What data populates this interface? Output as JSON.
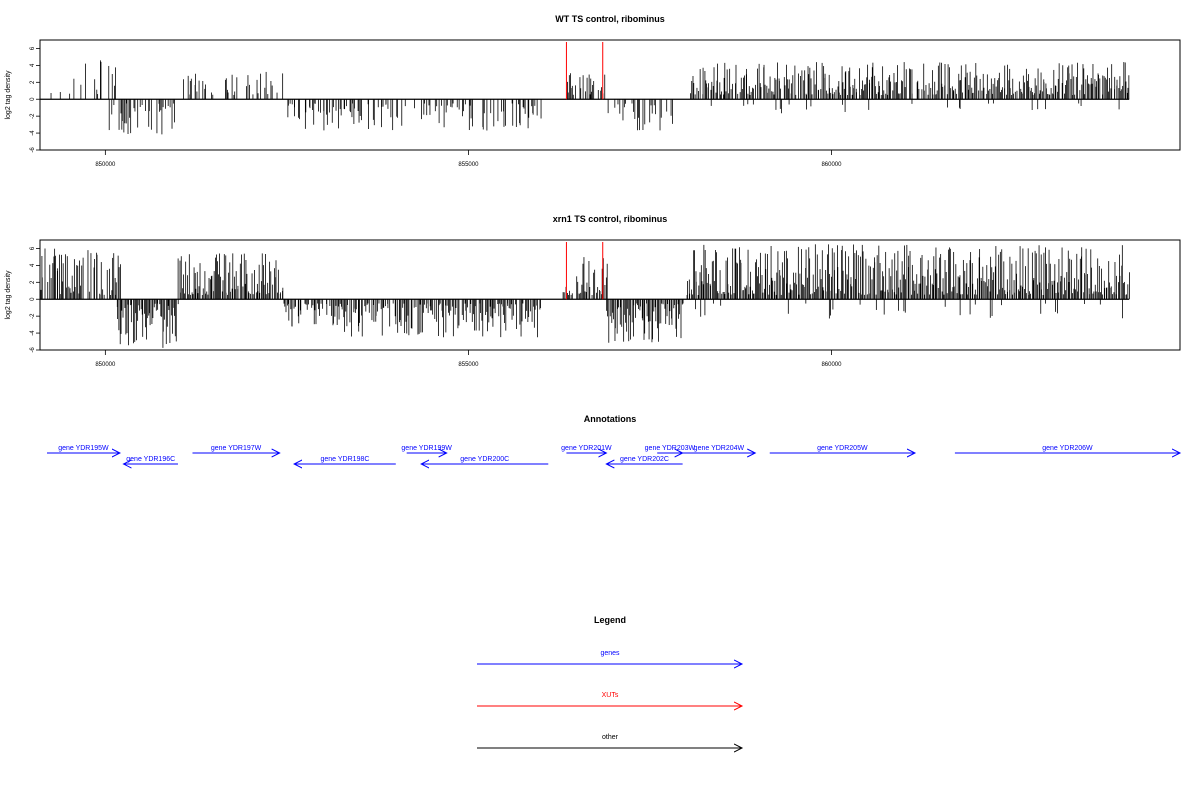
{
  "chart_data": [
    {
      "type": "bar",
      "title": "WT TS control, ribominus",
      "ylabel": "log2 tag density",
      "ylim": [
        -6,
        7
      ],
      "xlim": [
        849100,
        864800
      ],
      "yticks": [
        "6",
        "4",
        "2",
        "0",
        "-2",
        "-4",
        "-6"
      ],
      "yticks_values": [
        6,
        4,
        2,
        0,
        -2,
        -4,
        -6
      ],
      "xticks": [
        "850000",
        "855000",
        "860000"
      ],
      "xticks_values": [
        850000,
        855000,
        860000
      ],
      "data_range": [
        849100,
        864100
      ],
      "markers": [
        {
          "x": 856350,
          "color": "#ff0000"
        },
        {
          "x": 856850,
          "color": "#ff0000"
        }
      ],
      "series": [
        {
          "region": [
            849100,
            849500
          ],
          "sign": 1,
          "density": 0.15,
          "max": 1.3
        },
        {
          "region": [
            849500,
            850200
          ],
          "sign": 1,
          "density": 0.25,
          "max": 4.8
        },
        {
          "region": [
            850050,
            850950
          ],
          "sign": -1,
          "density": 0.6,
          "max": 4.3
        },
        {
          "region": [
            851000,
            852450
          ],
          "sign": 1,
          "density": 0.3,
          "max": 3.3
        },
        {
          "region": [
            852500,
            856000
          ],
          "sign": -1,
          "density": 0.45,
          "max": 3.7
        },
        {
          "region": [
            856350,
            856900
          ],
          "sign": 1,
          "density": 0.6,
          "max": 3.2
        },
        {
          "region": [
            856900,
            857800
          ],
          "sign": -1,
          "density": 0.5,
          "max": 3.7
        },
        {
          "region": [
            858050,
            864100
          ],
          "sign": 1,
          "density": 0.9,
          "max": 4.4
        },
        {
          "region": [
            858050,
            864100
          ],
          "sign": -1,
          "density": 0.05,
          "max": 1.8
        }
      ]
    },
    {
      "type": "bar",
      "title": "xrn1 TS control, ribominus",
      "ylabel": "log2 tag density",
      "ylim": [
        -6,
        7
      ],
      "xlim": [
        849100,
        864800
      ],
      "yticks": [
        "6",
        "4",
        "2",
        "0",
        "-2",
        "-4",
        "-6"
      ],
      "yticks_values": [
        6,
        4,
        2,
        0,
        -2,
        -4,
        -6
      ],
      "xticks": [
        "850000",
        "855000",
        "860000"
      ],
      "xticks_values": [
        850000,
        855000,
        860000
      ],
      "data_range": [
        849100,
        864100
      ],
      "markers": [
        {
          "x": 856350,
          "color": "#ff0000"
        },
        {
          "x": 856850,
          "color": "#ff0000"
        }
      ],
      "series": [
        {
          "region": [
            849100,
            850200
          ],
          "sign": 1,
          "density": 0.8,
          "max": 6.0
        },
        {
          "region": [
            850150,
            851000
          ],
          "sign": -1,
          "density": 1.0,
          "max": 5.8
        },
        {
          "region": [
            851000,
            852450
          ],
          "sign": 1,
          "density": 0.95,
          "max": 5.5
        },
        {
          "region": [
            852450,
            856000
          ],
          "sign": -1,
          "density": 0.85,
          "max": 4.5
        },
        {
          "region": [
            856300,
            856900
          ],
          "sign": 1,
          "density": 0.9,
          "max": 5.0
        },
        {
          "region": [
            856900,
            857950
          ],
          "sign": -1,
          "density": 1.0,
          "max": 5.3
        },
        {
          "region": [
            858000,
            864100
          ],
          "sign": 1,
          "density": 1.0,
          "max": 6.5
        },
        {
          "region": [
            858000,
            864100
          ],
          "sign": -1,
          "density": 0.08,
          "max": 2.3
        }
      ]
    }
  ],
  "annotations": {
    "title": "Annotations",
    "genes": [
      {
        "label": "gene YDR195W",
        "start": 849100,
        "end": 850200,
        "strand": "+",
        "row": 0
      },
      {
        "label": "gene YDR196C",
        "start": 850250,
        "end": 851000,
        "strand": "-",
        "row": 1
      },
      {
        "label": "gene YDR197W",
        "start": 851200,
        "end": 852400,
        "strand": "+",
        "row": 0
      },
      {
        "label": "gene YDR198C",
        "start": 852600,
        "end": 854000,
        "strand": "-",
        "row": 1
      },
      {
        "label": "gene YDR199W",
        "start": 854150,
        "end": 854700,
        "strand": "+",
        "row": 0
      },
      {
        "label": "gene YDR200C",
        "start": 854350,
        "end": 856100,
        "strand": "-",
        "row": 1
      },
      {
        "label": "gene YDR201W",
        "start": 856350,
        "end": 856900,
        "strand": "+",
        "row": 0
      },
      {
        "label": "gene YDR202C",
        "start": 856900,
        "end": 857950,
        "strand": "-",
        "row": 1
      },
      {
        "label": "gene YDR203W",
        "start": 857600,
        "end": 857950,
        "strand": "+",
        "row": 0
      },
      {
        "label": "gene YDR204W",
        "start": 857950,
        "end": 858950,
        "strand": "+",
        "row": 0
      },
      {
        "label": "gene YDR205W",
        "start": 859150,
        "end": 861150,
        "strand": "+",
        "row": 0
      },
      {
        "label": "gene YDR206W",
        "start": 861700,
        "end": 864800,
        "strand": "+",
        "row": 0
      }
    ]
  },
  "legend": {
    "title": "Legend",
    "items": [
      {
        "label": "genes",
        "color": "#0000ff"
      },
      {
        "label": "XUTs",
        "color": "#ff0000"
      },
      {
        "label": "other",
        "color": "#000000"
      }
    ]
  }
}
